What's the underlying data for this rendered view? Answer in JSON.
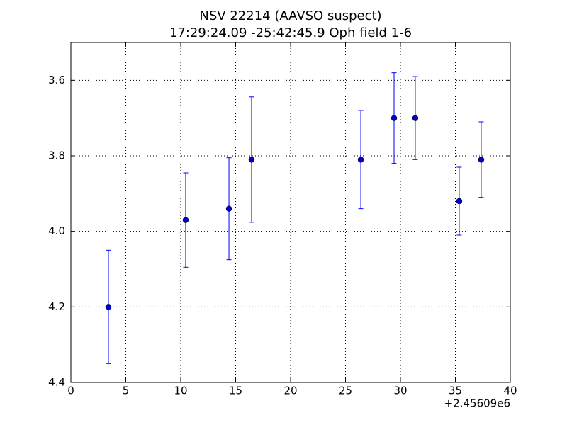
{
  "chart_data": {
    "type": "errorbar",
    "title": "NSV 22214 (AAVSO suspect)",
    "subtitle": "17:29:24.09 -25:42:45.9 Oph field 1-6",
    "x_offset_label": "+2.45609e6",
    "x": [
      3.42,
      10.45,
      14.39,
      16.45,
      26.39,
      29.42,
      31.35,
      35.35,
      37.35
    ],
    "y": [
      4.2,
      3.97,
      3.94,
      3.81,
      3.81,
      3.7,
      3.7,
      3.92,
      3.81
    ],
    "yerr": [
      0.15,
      0.125,
      0.135,
      0.166,
      0.13,
      0.12,
      0.11,
      0.09,
      0.1
    ],
    "color": "#0000ff",
    "marker_color": "#0000cc",
    "xlim": [
      0,
      40
    ],
    "xticks": [
      0,
      5,
      10,
      15,
      20,
      25,
      30,
      35,
      40
    ],
    "ylim": [
      4.4,
      3.5
    ],
    "yticks": [
      3.6,
      3.8,
      {
        "value": 4,
        "label": "4.0"
      },
      4.2,
      4.4
    ],
    "grid": true
  }
}
